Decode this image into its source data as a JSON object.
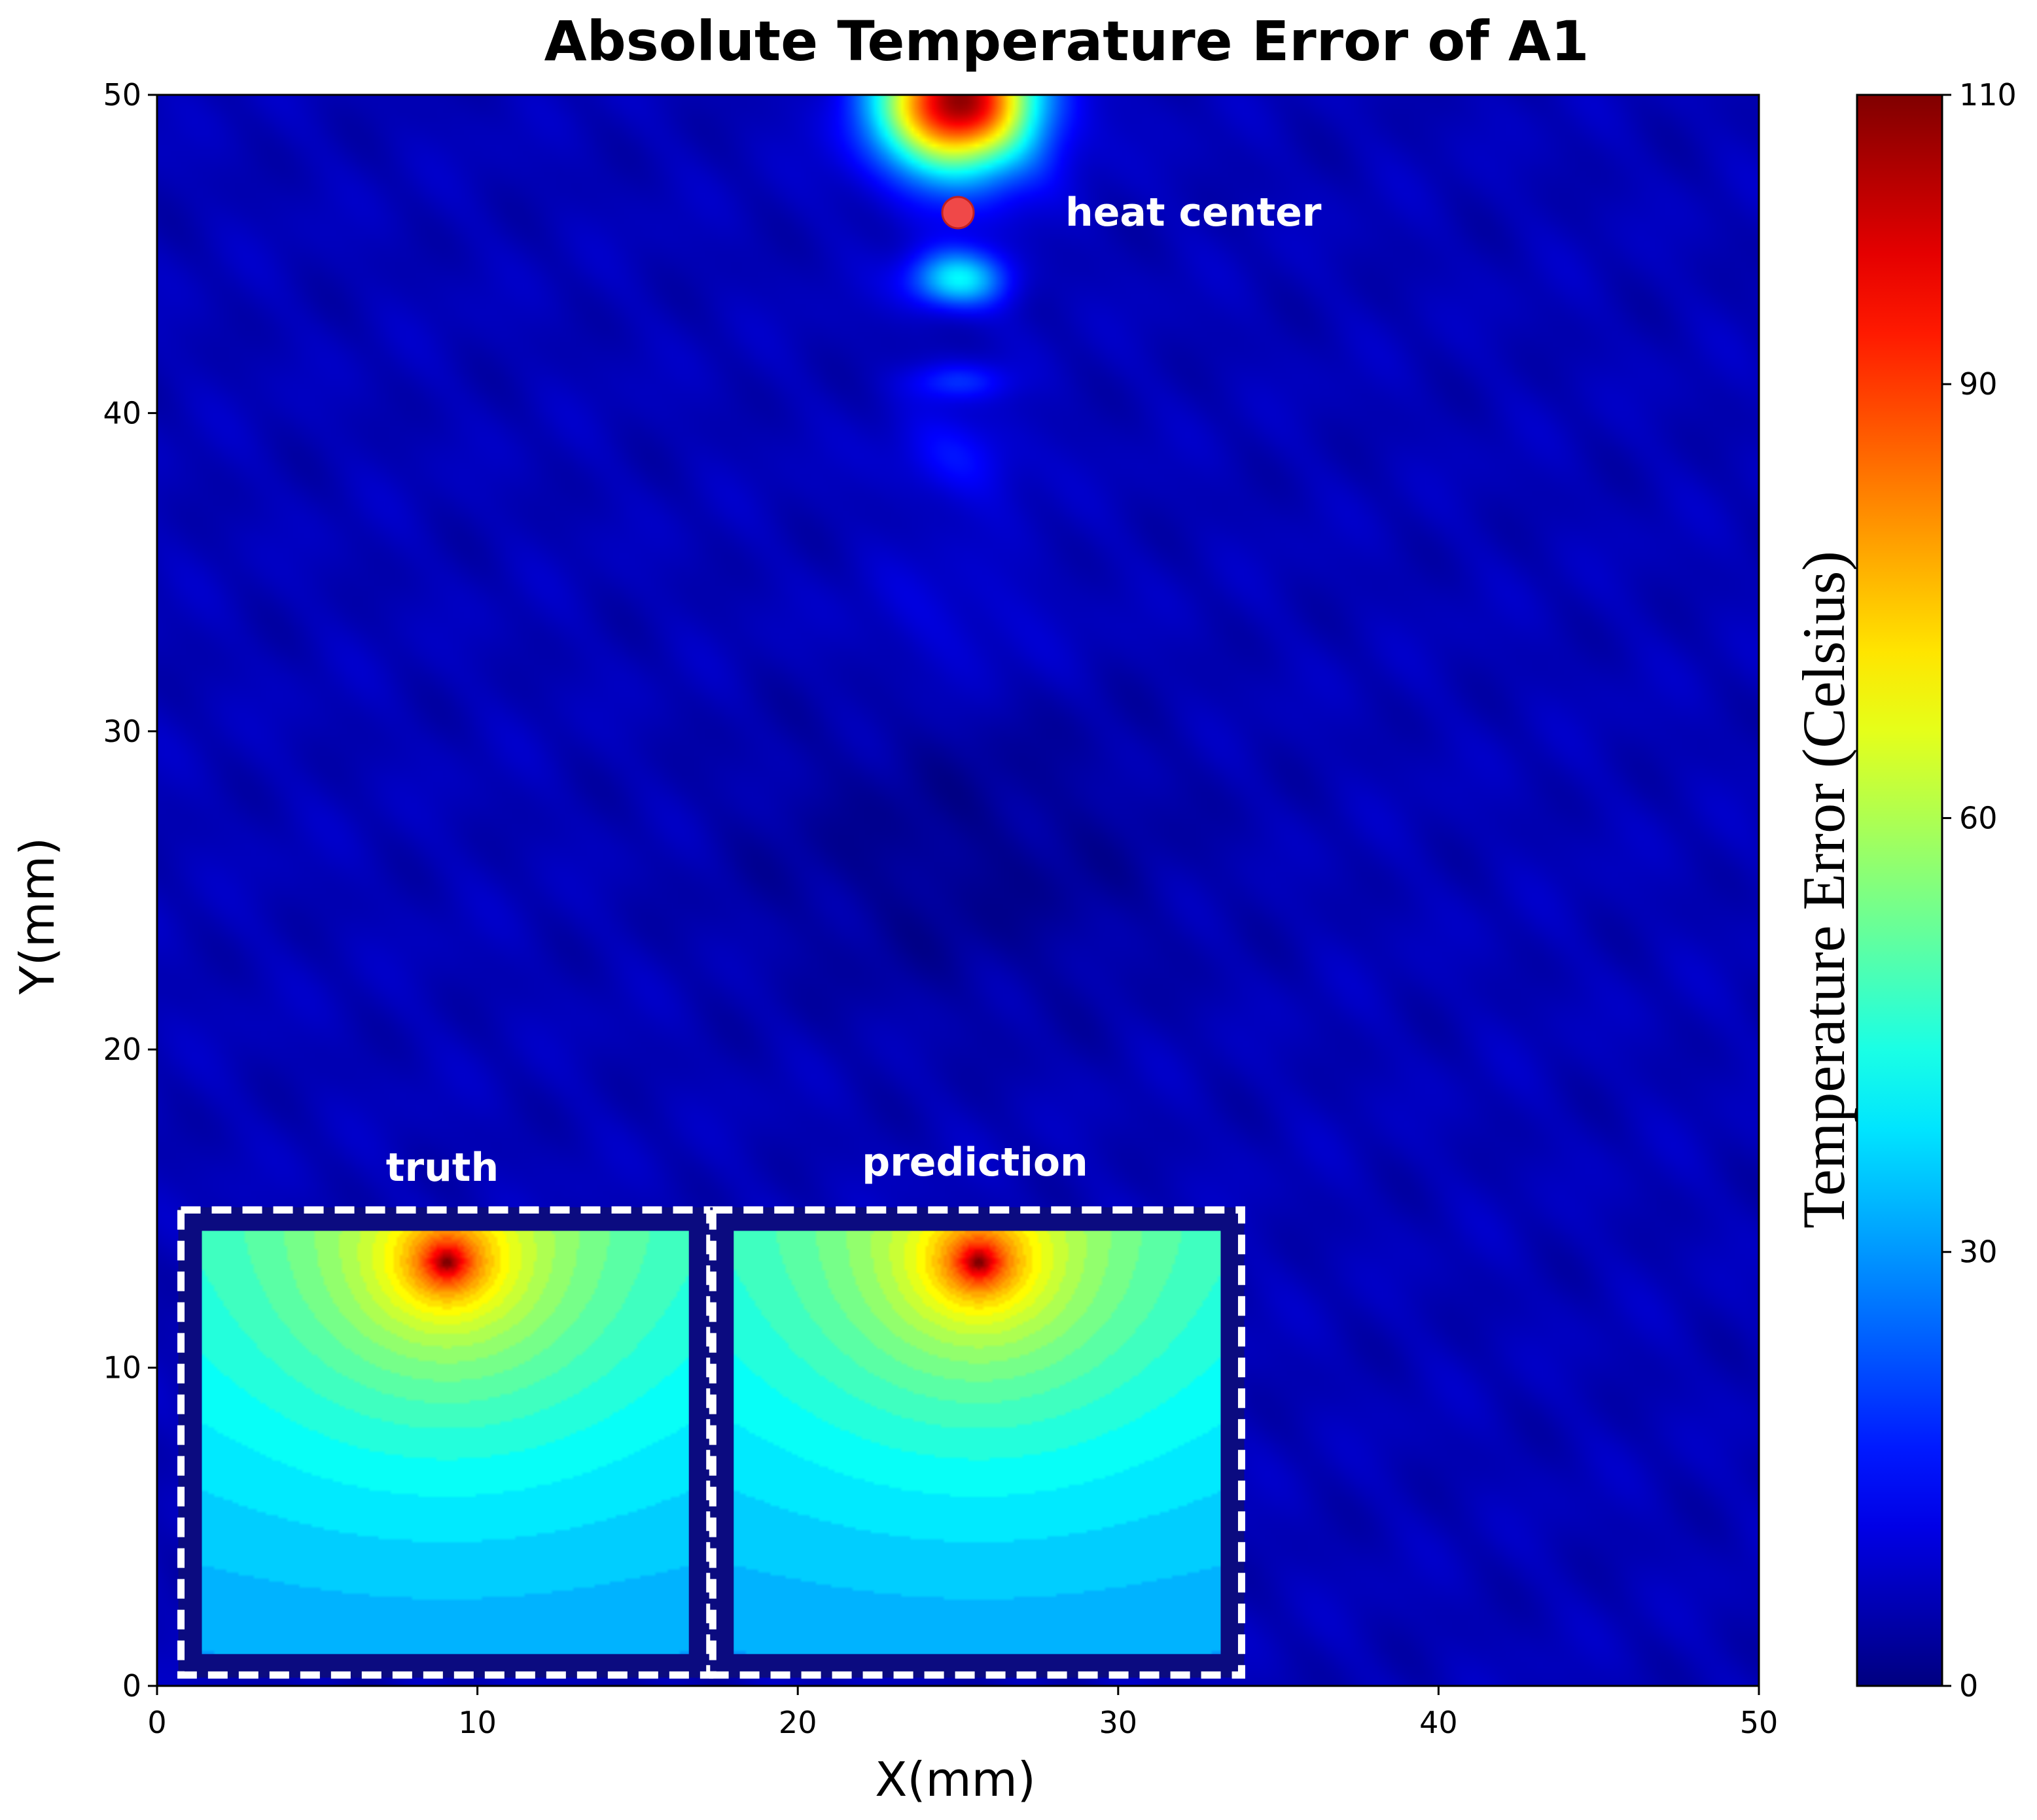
{
  "chart_data": {
    "type": "heatmap",
    "title": "Absolute Temperature Error of A1",
    "xlabel": "X(mm)",
    "ylabel": "Y(mm)",
    "xlim": [
      0,
      50
    ],
    "ylim": [
      0,
      50
    ],
    "xticks": [
      0,
      10,
      20,
      30,
      40,
      50
    ],
    "yticks": [
      0,
      10,
      20,
      30,
      40,
      50
    ],
    "colorbar": {
      "label": "Temperature Error (Celsius)",
      "range": [
        0,
        110
      ],
      "ticks": [
        0,
        30,
        60,
        90,
        110
      ],
      "colormap": "jet"
    },
    "heat_center": {
      "x": 25,
      "y": 46.3,
      "label": "heat center"
    },
    "error_field": {
      "background_value": 6,
      "hotspots": [
        {
          "x": 25,
          "y": 49.8,
          "value": 108,
          "spread_x": 2.4,
          "spread_y": 2.2
        },
        {
          "x": 25,
          "y": 44.2,
          "value": 40,
          "spread_x": 1.5,
          "spread_y": 0.9
        },
        {
          "x": 25,
          "y": 41.0,
          "value": 18,
          "spread_x": 1.5,
          "spread_y": 0.6
        },
        {
          "x": 25,
          "y": 38.6,
          "value": 15,
          "spread_x": 2.0,
          "spread_y": 1.3
        },
        {
          "x": 25,
          "y": 33.5,
          "value": 10,
          "spread_x": 3.0,
          "spread_y": 2.0
        }
      ],
      "cool_zone": {
        "x": 25,
        "y": 26,
        "value": 2
      }
    },
    "insets": [
      {
        "label": "truth",
        "x_range": [
          1.4,
          16.6
        ],
        "y_range": [
          1.0,
          14.3
        ],
        "hotspot_x_frac": 0.5,
        "peak_value": 110,
        "edge_value": 40
      },
      {
        "label": "prediction",
        "x_range": [
          18.0,
          33.2
        ],
        "y_range": [
          1.0,
          14.3
        ],
        "hotspot_x_frac": 0.5,
        "peak_value": 110,
        "edge_value": 40
      }
    ]
  },
  "colors": {
    "inset_frame": "#0b0b80",
    "dashed_border": "#ffffff",
    "heat_center_marker": "#f04848"
  }
}
